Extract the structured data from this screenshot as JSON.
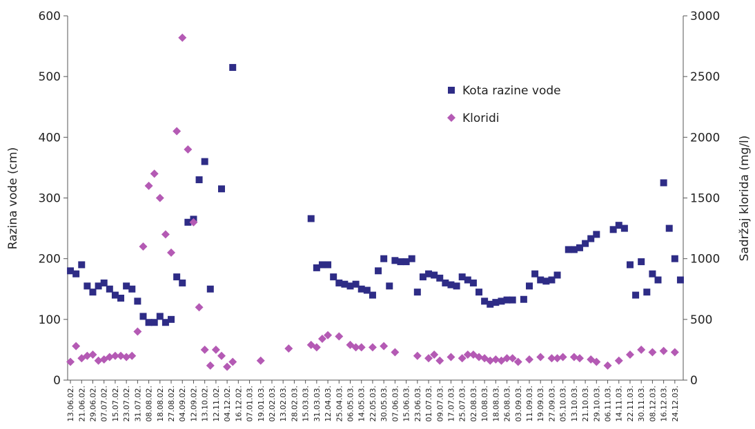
{
  "chart_data": {
    "type": "scatter",
    "ylabel": "Razina vode (cm)",
    "y2label": "Sadržaj klorida (mg/l)",
    "ylim": [
      0,
      600
    ],
    "yticks": [
      0,
      100,
      200,
      300,
      400,
      500,
      600
    ],
    "y2lim": [
      0,
      3000
    ],
    "y2ticks": [
      0,
      500,
      1000,
      1500,
      2000,
      2500,
      3000
    ],
    "categories": [
      "13.06.02.",
      null,
      "21.06.02.",
      null,
      "29.06.02.",
      null,
      "07.07.02.",
      null,
      "15.07.02.",
      null,
      "23.07.02.",
      null,
      "31.07.02.",
      null,
      "08.08.02.",
      null,
      "18.08.02.",
      null,
      "27.08.02.",
      null,
      "04.09.02.",
      null,
      "12.09.02.",
      null,
      "13.10.02.",
      null,
      "12.11.02.",
      null,
      "04.12.02.",
      null,
      "16.12.02.",
      null,
      "07.01.03.",
      null,
      "19.01.03.",
      null,
      "02.02.03.",
      null,
      "13.02.03.",
      null,
      "28.02.03.",
      null,
      "15.03.03.",
      null,
      "31.03.03.",
      null,
      "12.04.03.",
      null,
      "25.04.03.",
      null,
      "06.05.03.",
      null,
      "14.05.03.",
      null,
      "22.05.03.",
      null,
      "30.05.03.",
      null,
      "07.06.03.",
      null,
      "15.06.03.",
      null,
      "23.06.03.",
      null,
      "01.07.03.",
      null,
      "09.07.03.",
      null,
      "17.07.03.",
      null,
      "25.07.03.",
      null,
      "02.08.03.",
      null,
      "10.08.03.",
      null,
      "18.08.03.",
      null,
      "26.08.03.",
      null,
      "03.09.03.",
      null,
      "11.09.03.",
      null,
      "19.09.03.",
      null,
      "27.09.03.",
      null,
      "05.10.03.",
      null,
      "13.10.03.",
      null,
      "21.10.03.",
      null,
      "29.10.03.",
      null,
      "06.11.03.",
      null,
      "14.11.03.",
      null,
      "22.11.03.",
      null,
      "30.11.03.",
      null,
      "08.12.03.",
      null,
      "16.12.03.",
      null,
      "24.12.03.",
      null
    ],
    "series": [
      {
        "name": "Kota razine vode",
        "color": "#2e2c86",
        "marker": "square",
        "values": [
          180,
          175,
          190,
          155,
          145,
          155,
          160,
          150,
          140,
          135,
          155,
          150,
          130,
          105,
          95,
          95,
          105,
          95,
          100,
          170,
          160,
          260,
          265,
          330,
          360,
          150,
          null,
          315,
          null,
          515,
          null,
          null,
          null,
          null,
          null,
          null,
          null,
          null,
          null,
          null,
          null,
          null,
          null,
          266,
          185,
          190,
          190,
          170,
          160,
          158,
          155,
          158,
          150,
          148,
          140,
          180,
          200,
          155,
          197,
          195,
          195,
          200,
          145,
          170,
          175,
          173,
          168,
          160,
          157,
          155,
          170,
          165,
          160,
          145,
          130,
          125,
          128,
          130,
          132,
          132,
          null,
          133,
          155,
          175,
          165,
          163,
          165,
          173,
          null,
          215,
          215,
          218,
          225,
          233,
          240,
          null,
          null,
          248,
          255,
          250,
          190,
          140,
          195,
          145,
          175,
          165,
          325,
          250,
          200,
          165
        ]
      },
      {
        "name": "Kloridi",
        "color": "#b45ab4",
        "marker": "diamond",
        "axis": "y2",
        "values": [
          150,
          280,
          180,
          200,
          210,
          160,
          170,
          190,
          200,
          200,
          190,
          200,
          400,
          1100,
          1600,
          1700,
          1500,
          1200,
          1050,
          2050,
          2820,
          1900,
          1300,
          600,
          250,
          120,
          250,
          200,
          110,
          150,
          null,
          null,
          null,
          null,
          160,
          null,
          null,
          null,
          null,
          260,
          null,
          null,
          null,
          290,
          270,
          340,
          370,
          null,
          360,
          null,
          290,
          270,
          270,
          null,
          270,
          null,
          280,
          null,
          230,
          null,
          null,
          null,
          200,
          null,
          180,
          210,
          160,
          null,
          190,
          null,
          180,
          210,
          210,
          190,
          180,
          160,
          170,
          160,
          180,
          180,
          150,
          null,
          170,
          null,
          190,
          null,
          180,
          180,
          190,
          null,
          190,
          180,
          null,
          170,
          150,
          null,
          120,
          null,
          160,
          null,
          210,
          null,
          250,
          null,
          230,
          null,
          240,
          null,
          230,
          null
        ]
      }
    ]
  }
}
